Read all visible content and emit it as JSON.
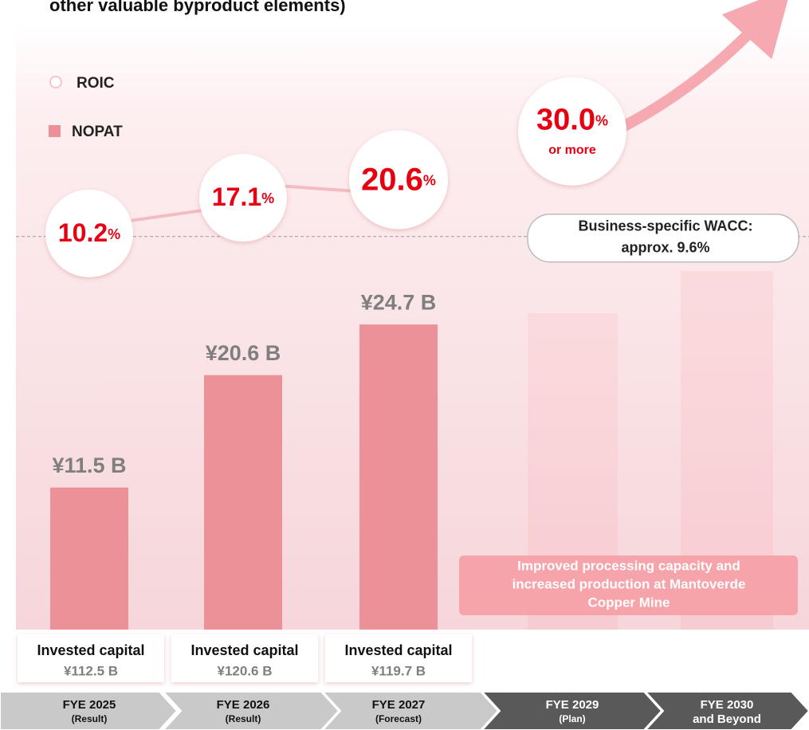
{
  "chart_data": {
    "type": "bar",
    "title": "other valuable byproduct elements)",
    "categories": [
      "FYE 2025",
      "FYE 2026",
      "FYE 2027",
      "FYE 2029",
      "FYE 2030"
    ],
    "category_sublabels": [
      "(Result)",
      "(Result)",
      "(Forecast)",
      "(Plan)",
      "and Beyond"
    ],
    "ylim": [
      0,
      50
    ],
    "y2lim": [
      6,
      40
    ],
    "series": [
      {
        "name": "NOPAT",
        "color": "#ec9198",
        "values": [
          11.5,
          20.6,
          24.7,
          null,
          null
        ],
        "value_labels": [
          "¥11.5 B",
          "¥20.6 B",
          "¥24.7 B",
          null,
          null
        ]
      },
      {
        "name": "ROIC",
        "color": "#e60012",
        "axis": "y2",
        "values": [
          10.2,
          17.1,
          20.6,
          30.0,
          null
        ],
        "value_labels": [
          "10.2",
          "17.1",
          "20.6",
          "30.0",
          null
        ],
        "unit": "%",
        "note": "or more"
      }
    ],
    "invested_capital": {
      "label": "Invested capital",
      "values": [
        112.5,
        120.6,
        119.7,
        null,
        null
      ],
      "value_labels": [
        "¥112.5 B",
        "¥120.6 B",
        "¥119.7 B",
        null,
        null
      ]
    },
    "wacc": {
      "value": 9.6,
      "lines": [
        "Business-specific WACC:",
        "approx. 9.6%"
      ]
    },
    "annotation": [
      "Improved processing capacity and",
      "increased production at Mantoverde",
      "Copper Mine"
    ]
  }
}
